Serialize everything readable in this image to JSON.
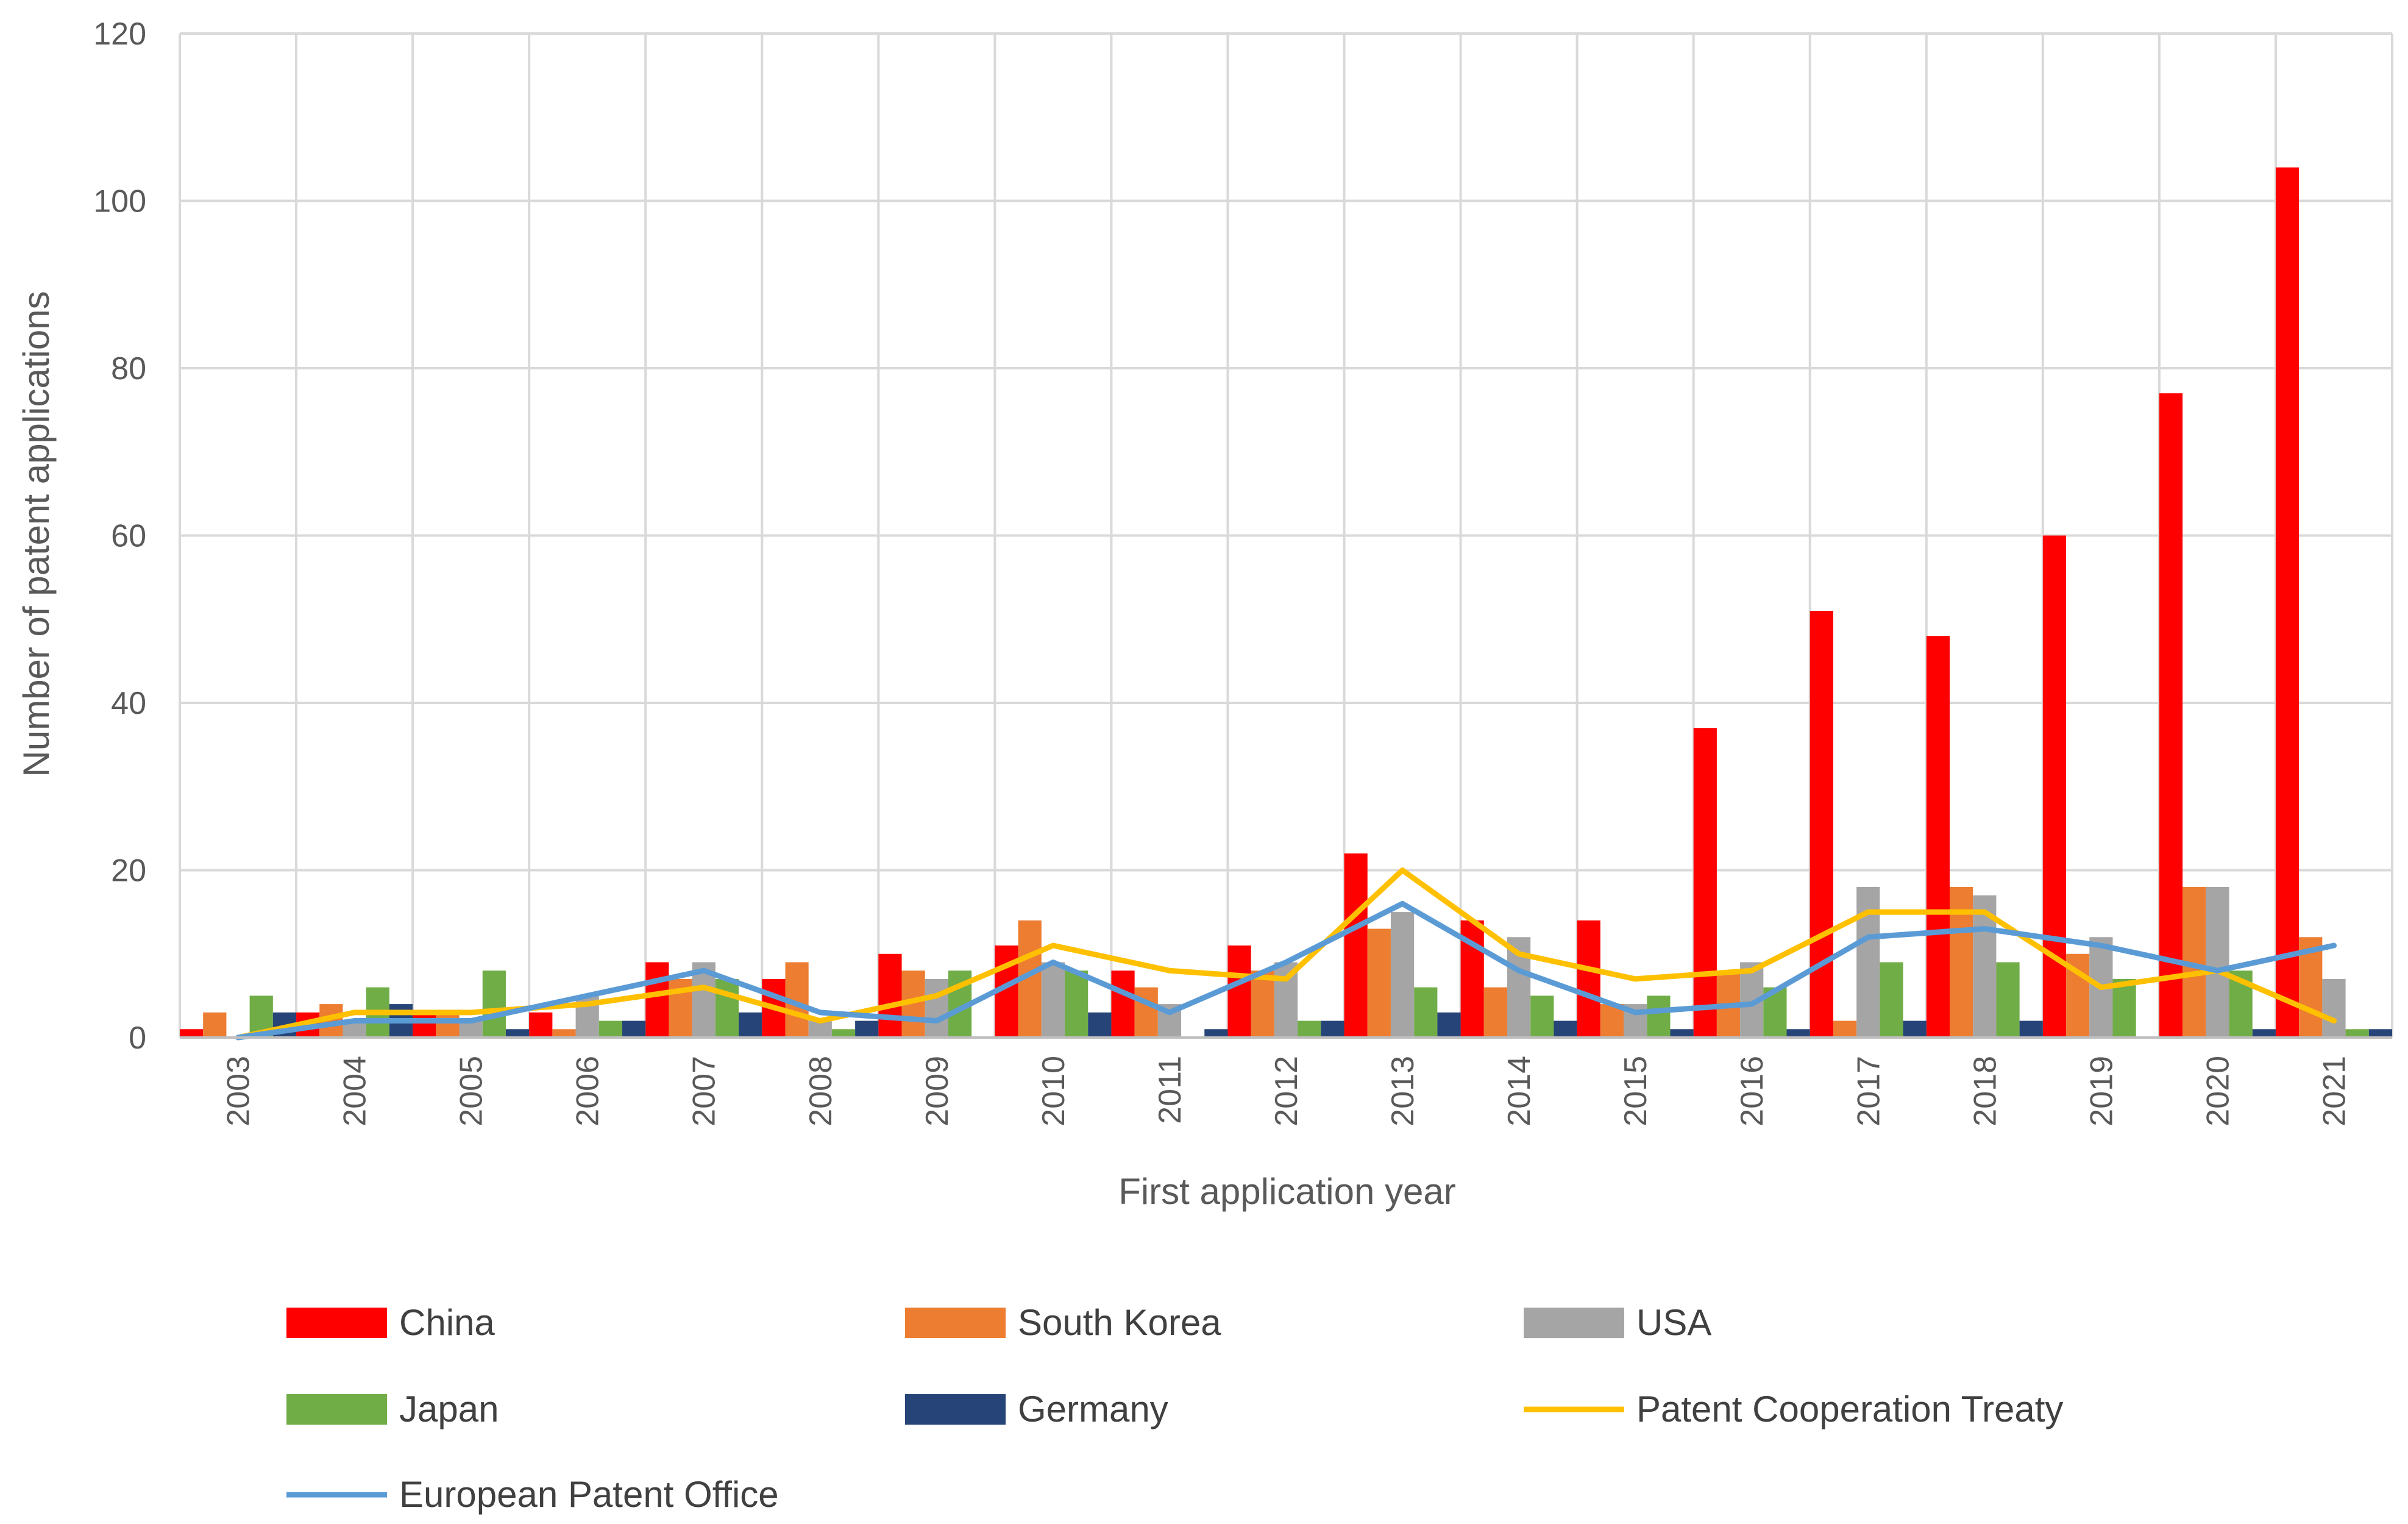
{
  "chart_data": {
    "type": "bar",
    "title": "",
    "xlabel": "First application year",
    "ylabel": "Number of patent applications",
    "ylim": [
      0,
      120
    ],
    "yticks": [
      0,
      20,
      40,
      60,
      80,
      100,
      120
    ],
    "grid": true,
    "legend_position": "bottom",
    "categories": [
      "2003",
      "2004",
      "2005",
      "2006",
      "2007",
      "2008",
      "2009",
      "2010",
      "2011",
      "2012",
      "2013",
      "2014",
      "2015",
      "2016",
      "2017",
      "2018",
      "2019",
      "2020",
      "2021"
    ],
    "series": [
      {
        "name": "China",
        "kind": "bar",
        "color": "#ff0000",
        "values": [
          1,
          3,
          3,
          3,
          9,
          7,
          10,
          11,
          8,
          11,
          22,
          14,
          14,
          37,
          51,
          48,
          60,
          77,
          104
        ]
      },
      {
        "name": "South Korea",
        "kind": "bar",
        "color": "#ed7d31",
        "values": [
          3,
          4,
          3,
          1,
          7,
          9,
          8,
          14,
          6,
          8,
          13,
          6,
          4,
          8,
          2,
          18,
          10,
          18,
          12
        ]
      },
      {
        "name": "USA",
        "kind": "bar",
        "color": "#a5a5a5",
        "values": [
          0,
          2,
          2,
          5,
          9,
          2,
          7,
          9,
          4,
          9,
          15,
          12,
          4,
          9,
          18,
          17,
          12,
          18,
          7
        ]
      },
      {
        "name": "Japan",
        "kind": "bar",
        "color": "#70ad47",
        "values": [
          5,
          6,
          8,
          2,
          7,
          1,
          8,
          8,
          0,
          2,
          6,
          5,
          5,
          6,
          9,
          9,
          7,
          8,
          1
        ]
      },
      {
        "name": "Germany",
        "kind": "bar",
        "color": "#264478",
        "values": [
          3,
          4,
          1,
          2,
          3,
          2,
          0,
          3,
          1,
          2,
          3,
          2,
          1,
          1,
          2,
          2,
          0,
          1,
          1
        ]
      },
      {
        "name": "Patent Cooperation Treaty",
        "kind": "line",
        "color": "#ffc000",
        "values": [
          0,
          3,
          3,
          4,
          6,
          2,
          5,
          11,
          8,
          7,
          20,
          10,
          7,
          8,
          15,
          15,
          6,
          8,
          2
        ]
      },
      {
        "name": "European Patent Office",
        "kind": "line",
        "color": "#5b9bd5",
        "values": [
          0,
          2,
          2,
          5,
          8,
          3,
          2,
          9,
          3,
          9,
          16,
          8,
          3,
          4,
          12,
          13,
          11,
          8,
          11
        ]
      }
    ]
  }
}
